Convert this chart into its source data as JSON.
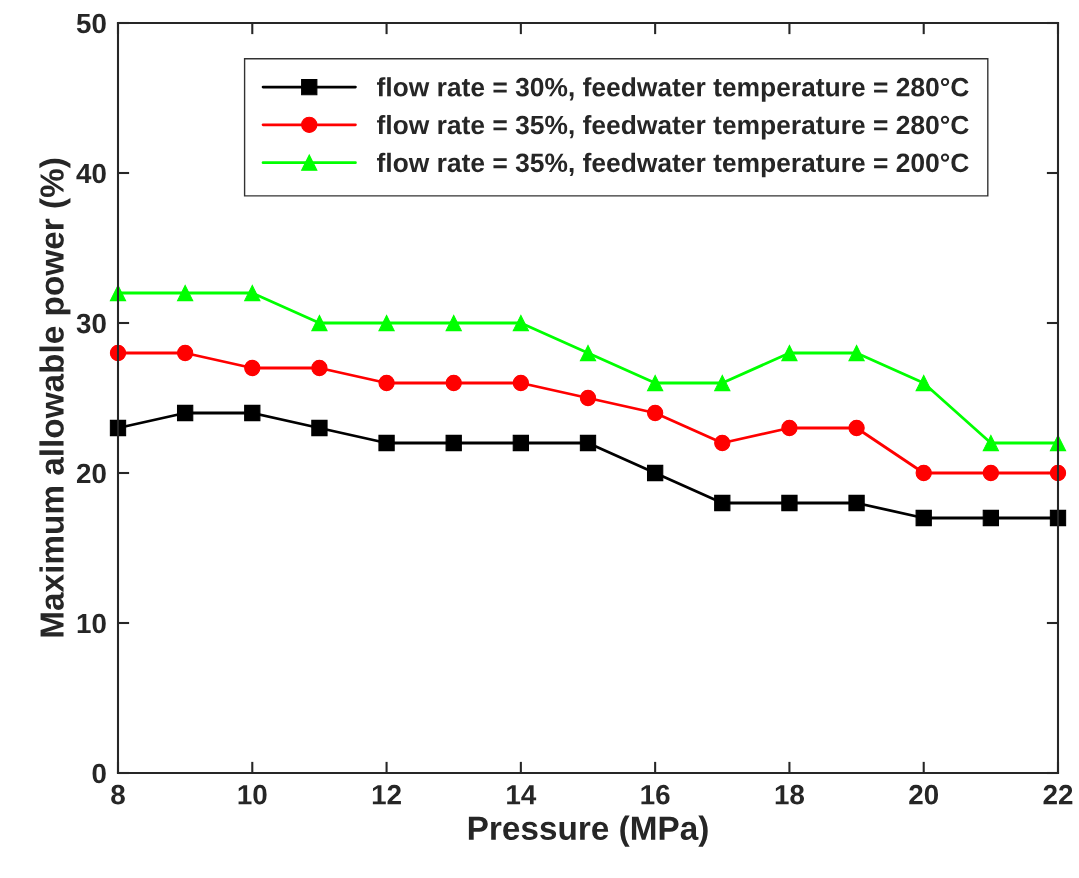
{
  "chart_data": {
    "type": "line",
    "xlabel": "Pressure (MPa)",
    "ylabel": "Maximum allowable power (%)",
    "x": [
      8,
      9,
      10,
      11,
      12,
      13,
      14,
      15,
      16,
      17,
      18,
      19,
      20,
      21,
      22
    ],
    "series": [
      {
        "name": "flow rate = 30%, feedwater temperature = 280°C",
        "color": "#000000",
        "marker": "square",
        "values": [
          23,
          24,
          24,
          23,
          22,
          22,
          22,
          22,
          20,
          18,
          18,
          18,
          17,
          17,
          17
        ]
      },
      {
        "name": "flow rate = 35%, feedwater temperature = 280°C",
        "color": "#ff0000",
        "marker": "circle",
        "values": [
          28,
          28,
          27,
          27,
          26,
          26,
          26,
          25,
          24,
          22,
          23,
          23,
          20,
          20,
          20
        ]
      },
      {
        "name": "flow rate = 35%, feedwater temperature = 200°C",
        "color": "#00ff00",
        "marker": "triangle",
        "values": [
          32,
          32,
          32,
          30,
          30,
          30,
          30,
          28,
          26,
          26,
          28,
          28,
          26,
          22,
          22
        ]
      }
    ],
    "xlim": [
      8,
      22
    ],
    "xticks": [
      8,
      10,
      12,
      14,
      16,
      18,
      20,
      22
    ],
    "ylim": [
      0,
      50
    ],
    "yticks": [
      0,
      10,
      20,
      30,
      40,
      50
    ],
    "grid": false,
    "legend": "top",
    "line_style": "solid"
  }
}
